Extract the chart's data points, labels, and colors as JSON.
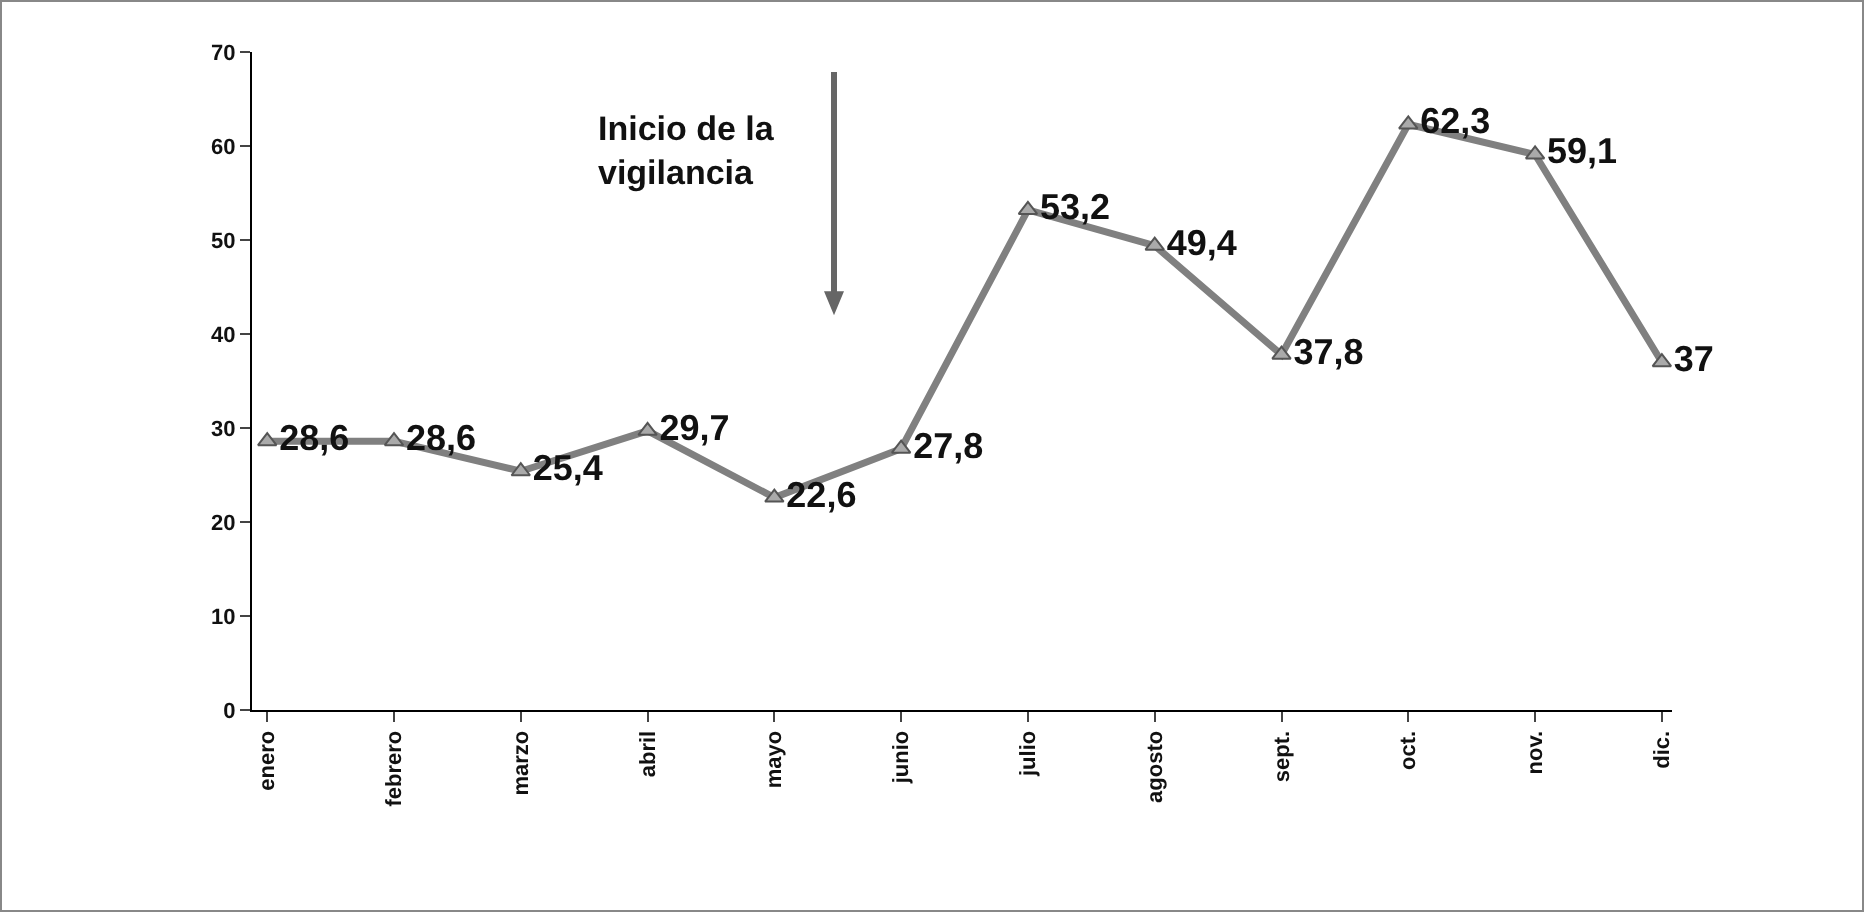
{
  "chart_data": {
    "type": "line",
    "categories": [
      "enero",
      "febrero",
      "marzo",
      "abril",
      "mayo",
      "junio",
      "julio",
      "agosto",
      "sept.",
      "oct.",
      "nov.",
      "dic."
    ],
    "series": [
      {
        "color": "#808080",
        "values": [
          28.6,
          28.6,
          25.4,
          29.7,
          22.6,
          27.8,
          53.2,
          49.4,
          37.8,
          62.3,
          59.1,
          37
        ],
        "value_labels": [
          "28,6",
          "28,6",
          "25,4",
          "29,7",
          "22,6",
          "27,8",
          "53,2",
          "49,4",
          "37,8",
          "62,3",
          "59,1",
          "37"
        ]
      }
    ],
    "ylim": [
      0,
      70
    ],
    "yticks": [
      0,
      10,
      20,
      30,
      40,
      50,
      60,
      70
    ],
    "grid": false,
    "marker": "triangle",
    "line_style": "solid",
    "annotations": [
      "Inicio de la vigilancia"
    ]
  }
}
